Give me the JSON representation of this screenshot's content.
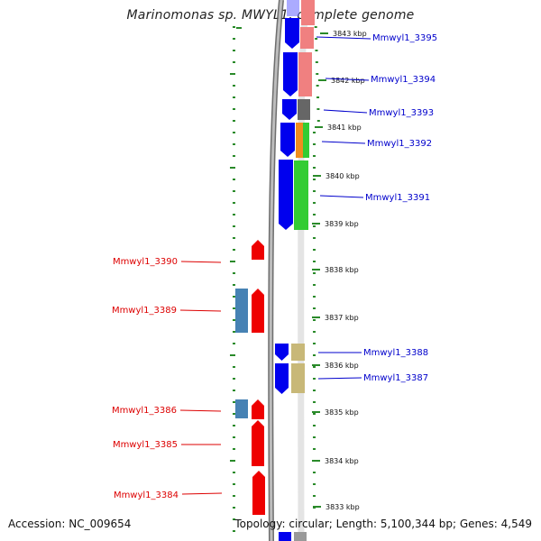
{
  "title": "Marinomonas sp. MWYL1, complete genome",
  "accession_text": "Accession: NC_009654",
  "topology_text": "Topology: circular; Length: 5,100,344 bp; Genes: 4,549",
  "colors": {
    "forward_label": "#0000cc",
    "reverse_label": "#dd0000",
    "tick": "#2a8a2a",
    "backbone": "#808080"
  },
  "scale_ticks": [
    {
      "label": "3843 kbp"
    },
    {
      "label": "3842 kbp"
    },
    {
      "label": "3841 kbp"
    },
    {
      "label": "3840 kbp"
    },
    {
      "label": "3839 kbp"
    },
    {
      "label": "3838 kbp"
    },
    {
      "label": "3837 kbp"
    },
    {
      "label": "3836 kbp"
    },
    {
      "label": "3835 kbp"
    },
    {
      "label": "3834 kbp"
    },
    {
      "label": "3833 kbp"
    }
  ],
  "genes": [
    {
      "label": "Mmwyl1_3395",
      "strand": "forward",
      "cog_color": "#f08080"
    },
    {
      "label": "Mmwyl1_3394",
      "strand": "forward",
      "cog_color": "#f08080"
    },
    {
      "label": "Mmwyl1_3393",
      "strand": "forward",
      "cog_color": "#666666"
    },
    {
      "label": "Mmwyl1_3392",
      "strand": "forward",
      "cog_color": "#f08c1e"
    },
    {
      "label": "Mmwyl1_3391",
      "strand": "forward",
      "cog_color": "#33cc33"
    },
    {
      "label": "Mmwyl1_3390",
      "strand": "reverse",
      "cog_color": null
    },
    {
      "label": "Mmwyl1_3389",
      "strand": "reverse",
      "cog_color": "#4682b4"
    },
    {
      "label": "Mmwyl1_3388",
      "strand": "forward",
      "cog_color": "#c8b878"
    },
    {
      "label": "Mmwyl1_3387",
      "strand": "forward",
      "cog_color": "#c8b878"
    },
    {
      "label": "Mmwyl1_3386",
      "strand": "reverse",
      "cog_color": "#4682b4"
    },
    {
      "label": "Mmwyl1_3385",
      "strand": "reverse",
      "cog_color": null
    },
    {
      "label": "Mmwyl1_3384",
      "strand": "reverse",
      "cog_color": null
    }
  ],
  "unlabeled_features": [
    {
      "strand": "forward",
      "cog_color": "#f08080"
    }
  ]
}
